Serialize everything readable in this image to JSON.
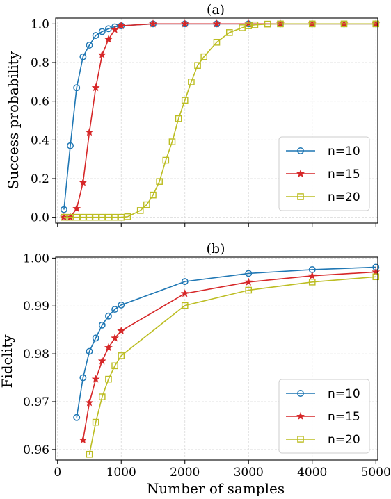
{
  "chart_data": [
    {
      "type": "line",
      "title": "(a)",
      "xlabel": "",
      "ylabel": "Success probability",
      "xlim": [
        -30,
        5030
      ],
      "ylim": [
        -0.03,
        1.03
      ],
      "xticks": [
        0,
        1000,
        2000,
        3000,
        4000,
        5000
      ],
      "xtick_labels": [],
      "yticks": [
        0.0,
        0.2,
        0.4,
        0.6,
        0.8,
        1.0
      ],
      "ytick_labels": [
        "0.0",
        "0.2",
        "0.4",
        "0.6",
        "0.8",
        "1.0"
      ],
      "grid": true,
      "legend_position": "lower right",
      "series": [
        {
          "name": "n=10",
          "color": "#1f77b4",
          "marker": "circle",
          "x": [
            100,
            200,
            300,
            400,
            500,
            600,
            700,
            800,
            900,
            1000,
            1500,
            2000,
            2500,
            3000,
            3500,
            4000,
            4500,
            5000
          ],
          "y": [
            0.04,
            0.37,
            0.67,
            0.83,
            0.89,
            0.94,
            0.96,
            0.975,
            0.985,
            0.99,
            1.0,
            1.0,
            1.0,
            1.0,
            1.0,
            1.0,
            1.0,
            1.0
          ]
        },
        {
          "name": "n=15",
          "color": "#d62728",
          "marker": "star",
          "x": [
            100,
            200,
            300,
            400,
            500,
            600,
            700,
            800,
            900,
            1000,
            1500,
            2000,
            2500,
            3000,
            3500,
            4000,
            4500,
            5000
          ],
          "y": [
            0.0,
            0.0,
            0.045,
            0.18,
            0.44,
            0.67,
            0.84,
            0.92,
            0.97,
            0.99,
            1.0,
            1.0,
            1.0,
            1.0,
            1.0,
            1.0,
            1.0,
            1.0
          ]
        },
        {
          "name": "n=20",
          "color": "#bcbd22",
          "marker": "square",
          "x": [
            100,
            200,
            300,
            400,
            500,
            600,
            700,
            800,
            900,
            1000,
            1100,
            1300,
            1400,
            1500,
            1600,
            1700,
            1800,
            1900,
            2000,
            2100,
            2200,
            2300,
            2500,
            2700,
            2900,
            3000,
            3100,
            3300,
            3500,
            4000,
            4500,
            5000
          ],
          "y": [
            0.0,
            0.0,
            0.0,
            0.0,
            0.0,
            0.0,
            0.0,
            0.0,
            0.0,
            0.0,
            0.003,
            0.035,
            0.065,
            0.115,
            0.185,
            0.295,
            0.39,
            0.51,
            0.605,
            0.7,
            0.785,
            0.83,
            0.905,
            0.955,
            0.98,
            0.99,
            0.995,
            0.999,
            1.0,
            1.0,
            1.0,
            1.0
          ]
        }
      ]
    },
    {
      "type": "line",
      "title": "(b)",
      "xlabel": "Number of samples",
      "ylabel": "Fidelity",
      "xlim": [
        -30,
        5030
      ],
      "ylim": [
        0.9578,
        1.0002
      ],
      "xticks": [
        0,
        1000,
        2000,
        3000,
        4000,
        5000
      ],
      "xtick_labels": [
        "0",
        "1000",
        "2000",
        "3000",
        "4000",
        "5000"
      ],
      "yticks": [
        0.96,
        0.97,
        0.98,
        0.99,
        1.0
      ],
      "ytick_labels": [
        "0.96",
        "0.97",
        "0.98",
        "0.99",
        "1.00"
      ],
      "grid": true,
      "legend_position": "lower right",
      "series": [
        {
          "name": "n=10",
          "color": "#1f77b4",
          "marker": "circle",
          "x": [
            300,
            400,
            500,
            600,
            700,
            800,
            900,
            1000,
            2000,
            3000,
            4000,
            5000
          ],
          "y": [
            0.9667,
            0.975,
            0.9805,
            0.9833,
            0.986,
            0.9879,
            0.9893,
            0.9902,
            0.9951,
            0.9968,
            0.9976,
            0.9981
          ]
        },
        {
          "name": "n=15",
          "color": "#d62728",
          "marker": "star",
          "x": [
            400,
            500,
            600,
            700,
            800,
            900,
            1000,
            2000,
            3000,
            4000,
            5000
          ],
          "y": [
            0.962,
            0.9698,
            0.9747,
            0.9785,
            0.9813,
            0.9833,
            0.9848,
            0.9926,
            0.995,
            0.9963,
            0.9971
          ]
        },
        {
          "name": "n=20",
          "color": "#bcbd22",
          "marker": "square",
          "x": [
            500,
            600,
            700,
            800,
            900,
            1000,
            2000,
            3000,
            4000,
            5000
          ],
          "y": [
            0.959,
            0.9657,
            0.971,
            0.9747,
            0.9775,
            0.9796,
            0.9901,
            0.9933,
            0.995,
            0.9961
          ]
        }
      ]
    }
  ]
}
